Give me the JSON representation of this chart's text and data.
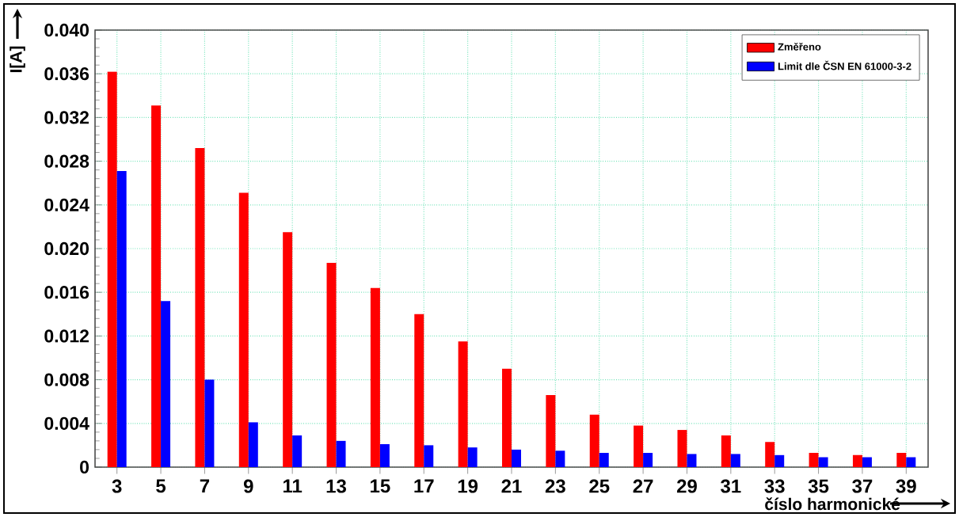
{
  "chart_data": {
    "type": "bar",
    "xlabel": "číslo harmonické",
    "ylabel": "I[A]",
    "categories": [
      "3",
      "5",
      "7",
      "9",
      "11",
      "13",
      "15",
      "17",
      "19",
      "21",
      "23",
      "25",
      "27",
      "29",
      "31",
      "33",
      "35",
      "37",
      "39"
    ],
    "series": [
      {
        "name": "Změřeno",
        "color": "#ff0000",
        "values": [
          0.0362,
          0.0331,
          0.0292,
          0.0251,
          0.0215,
          0.0187,
          0.0164,
          0.014,
          0.0115,
          0.009,
          0.0066,
          0.0048,
          0.0038,
          0.0034,
          0.0029,
          0.0023,
          0.0013,
          0.0011,
          0.0013
        ]
      },
      {
        "name": "Limit dle ČSN EN 61000-3-2",
        "color": "#0000ff",
        "values": [
          0.0271,
          0.0152,
          0.008,
          0.0041,
          0.0029,
          0.0024,
          0.0021,
          0.002,
          0.0018,
          0.0016,
          0.0015,
          0.0013,
          0.0013,
          0.0012,
          0.0012,
          0.0011,
          0.0009,
          0.0009,
          0.0009
        ]
      }
    ],
    "ylim": [
      0,
      0.04
    ],
    "yticks": [
      0,
      0.004,
      0.008,
      0.012,
      0.016,
      {
        "value": 0.02,
        "label": "0.020"
      },
      0.024,
      0.028,
      0.032,
      0.036,
      {
        "value": 0.04,
        "label": "0.040"
      }
    ],
    "grid": true,
    "legend": "top right"
  }
}
